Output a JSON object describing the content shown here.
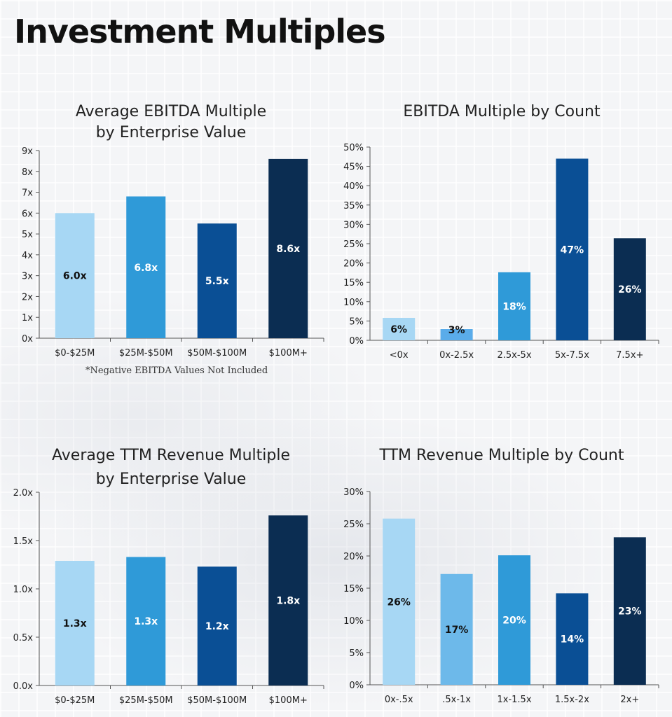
{
  "page_title": "Investment Multiples",
  "footnote": "*Negative EBITDA Values Not Included",
  "chart_data": [
    {
      "type": "bar",
      "title_lines": [
        "Average EBITDA Multiple",
        "by Enterprise Value"
      ],
      "categories": [
        "$0-$25M",
        "$25M-$50M",
        "$50M-$100M",
        "$100M+"
      ],
      "values": [
        6.0,
        6.8,
        5.5,
        8.6
      ],
      "data_labels": [
        "6.0x",
        "6.8x",
        "5.5x",
        "8.6x"
      ],
      "colors": [
        "#a7d7f4",
        "#2f9ad8",
        "#0a4f95",
        "#0b2d52"
      ],
      "label_colors": [
        "#111111",
        "#ffffff",
        "#ffffff",
        "#ffffff"
      ],
      "ylim": [
        0,
        9
      ],
      "yticks": [
        0,
        1,
        2,
        3,
        4,
        5,
        6,
        7,
        8,
        9
      ],
      "ytick_labels": [
        "0x",
        "1x",
        "2x",
        "3x",
        "4x",
        "5x",
        "6x",
        "7x",
        "8x",
        "9x"
      ],
      "grid": false,
      "xlabel": "",
      "ylabel": ""
    },
    {
      "type": "bar",
      "title_lines": [
        "EBITDA Multiple by Count"
      ],
      "categories": [
        "<0x",
        "0x-2.5x",
        "2.5x-5x",
        "5x-7.5x",
        "7.5x+"
      ],
      "values": [
        6,
        3,
        18,
        47,
        26
      ],
      "bar_values_estimated": [
        5.8,
        2.9,
        17.6,
        47.0,
        26.4
      ],
      "data_labels": [
        "6%",
        "3%",
        "18%",
        "47%",
        "26%"
      ],
      "colors": [
        "#a7d7f4",
        "#5aacea",
        "#2f9ad8",
        "#0a4f95",
        "#0b2d52"
      ],
      "label_colors": [
        "#111111",
        "#111111",
        "#ffffff",
        "#ffffff",
        "#ffffff"
      ],
      "ylim": [
        0,
        50
      ],
      "yticks": [
        0,
        5,
        10,
        15,
        20,
        25,
        30,
        35,
        40,
        45,
        50
      ],
      "ytick_labels": [
        "0%",
        "5%",
        "10%",
        "15%",
        "20%",
        "25%",
        "30%",
        "35%",
        "40%",
        "45%",
        "50%"
      ],
      "grid": false,
      "xlabel": "",
      "ylabel": ""
    },
    {
      "type": "bar",
      "title_lines": [
        "Average TTM Revenue Multiple",
        "by Enterprise Value"
      ],
      "categories": [
        "$0-$25M",
        "$25M-$50M",
        "$50M-$100M",
        "$100M+"
      ],
      "values": [
        1.3,
        1.3,
        1.2,
        1.8
      ],
      "bar_values_estimated": [
        1.29,
        1.33,
        1.23,
        1.76
      ],
      "data_labels": [
        "1.3x",
        "1.3x",
        "1.2x",
        "1.8x"
      ],
      "colors": [
        "#a7d7f4",
        "#2f9ad8",
        "#0a4f95",
        "#0b2d52"
      ],
      "label_colors": [
        "#111111",
        "#ffffff",
        "#ffffff",
        "#ffffff"
      ],
      "ylim": [
        0,
        2.0
      ],
      "yticks": [
        0,
        0.5,
        1.0,
        1.5,
        2.0
      ],
      "ytick_labels": [
        "0.0x",
        "0.5x",
        "1.0x",
        "1.5x",
        "2.0x"
      ],
      "grid": false,
      "xlabel": "",
      "ylabel": ""
    },
    {
      "type": "bar",
      "title_lines": [
        "TTM Revenue Multiple by Count"
      ],
      "categories": [
        "0x-.5x",
        ".5x-1x",
        "1x-1.5x",
        "1.5x-2x",
        "2x+"
      ],
      "values": [
        26,
        17,
        20,
        14,
        23
      ],
      "bar_values_estimated": [
        25.8,
        17.2,
        20.1,
        14.2,
        22.9
      ],
      "data_labels": [
        "26%",
        "17%",
        "20%",
        "14%",
        "23%"
      ],
      "colors": [
        "#a7d7f4",
        "#6db9ea",
        "#2f9ad8",
        "#0a4f95",
        "#0b2d52"
      ],
      "label_colors": [
        "#111111",
        "#111111",
        "#ffffff",
        "#ffffff",
        "#ffffff"
      ],
      "ylim": [
        0,
        30
      ],
      "yticks": [
        0,
        5,
        10,
        15,
        20,
        25,
        30
      ],
      "ytick_labels": [
        "0%",
        "5%",
        "10%",
        "15%",
        "20%",
        "25%",
        "30%"
      ],
      "grid": false,
      "xlabel": "",
      "ylabel": ""
    }
  ]
}
